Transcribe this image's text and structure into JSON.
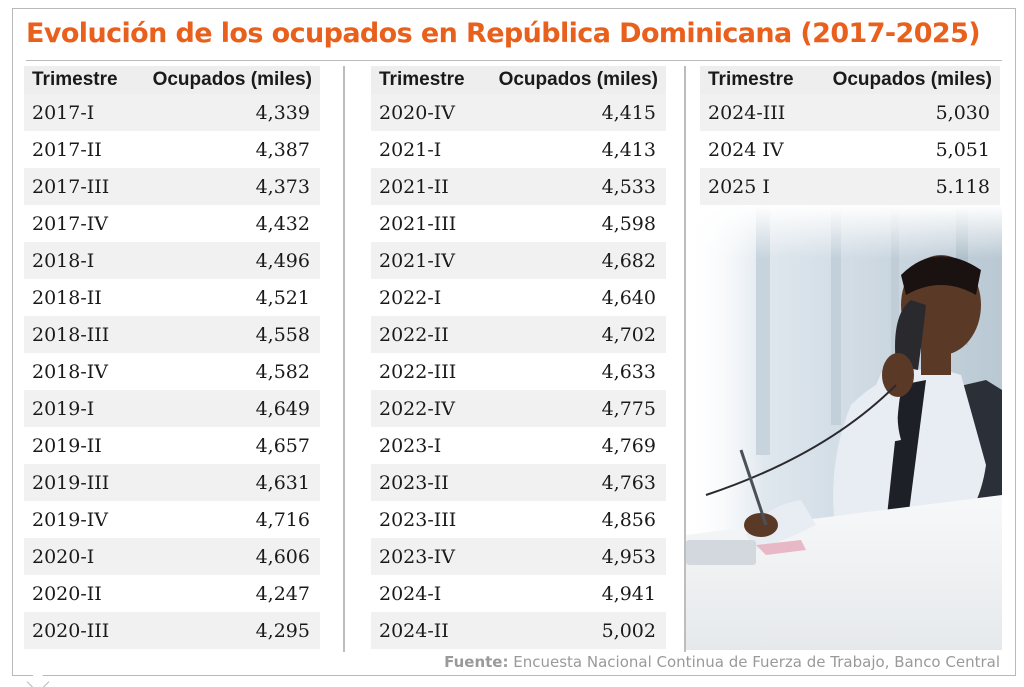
{
  "title": "Evolución de los ocupados en República Dominicana (2017-2025)",
  "header": {
    "col_quarter": "Trimestre",
    "col_value": "Ocupados (miles)"
  },
  "columns": [
    [
      {
        "q": "2017-I",
        "v": "4,339"
      },
      {
        "q": "2017-II",
        "v": "4,387"
      },
      {
        "q": "2017-III",
        "v": "4,373"
      },
      {
        "q": "2017-IV",
        "v": "4,432"
      },
      {
        "q": "2018-I",
        "v": "4,496"
      },
      {
        "q": "2018-II",
        "v": "4,521"
      },
      {
        "q": "2018-III",
        "v": "4,558"
      },
      {
        "q": "2018-IV",
        "v": "4,582"
      },
      {
        "q": "2019-I",
        "v": "4,649"
      },
      {
        "q": "2019-II",
        "v": "4,657"
      },
      {
        "q": "2019-III",
        "v": "4,631"
      },
      {
        "q": "2019-IV",
        "v": "4,716"
      },
      {
        "q": "2020-I",
        "v": "4,606"
      },
      {
        "q": "2020-II",
        "v": "4,247"
      },
      {
        "q": "2020-III",
        "v": "4,295"
      }
    ],
    [
      {
        "q": "2020-IV",
        "v": "4,415"
      },
      {
        "q": "2021-I",
        "v": "4,413"
      },
      {
        "q": "2021-II",
        "v": "4,533"
      },
      {
        "q": "2021-III",
        "v": "4,598"
      },
      {
        "q": "2021-IV",
        "v": "4,682"
      },
      {
        "q": "2022-I",
        "v": "4,640"
      },
      {
        "q": "2022-II",
        "v": "4,702"
      },
      {
        "q": "2022-III",
        "v": "4,633"
      },
      {
        "q": "2022-IV",
        "v": "4,775"
      },
      {
        "q": "2023-I",
        "v": "4,769"
      },
      {
        "q": "2023-II",
        "v": "4,763"
      },
      {
        "q": "2023-III",
        "v": "4,856"
      },
      {
        "q": "2023-IV",
        "v": "4,953"
      },
      {
        "q": "2024-I",
        "v": "4,941"
      },
      {
        "q": "2024-II",
        "v": "5,002"
      }
    ],
    [
      {
        "q": "2024-III",
        "v": "5,030"
      },
      {
        "q": "2024 IV",
        "v": "5,051"
      },
      {
        "q": "2025 I",
        "v": "5.118"
      }
    ]
  ],
  "source": {
    "label": "Fuente:",
    "text": "Encuesta Nacional Continua de Fuerza de Trabajo, Banco Central"
  },
  "photo": {
    "icon": "man-on-phone-photo"
  },
  "colors": {
    "title": "#e8601c",
    "header_bg": "#eeeeee",
    "row_alt_bg": "#f1f1f1",
    "source": "#9a9a9a"
  },
  "chart_data": {
    "type": "table",
    "title": "Evolución de los ocupados en República Dominicana (2017-2025)",
    "columns": [
      "Trimestre",
      "Ocupados (miles)"
    ],
    "rows": [
      [
        "2017-I",
        4339
      ],
      [
        "2017-II",
        4387
      ],
      [
        "2017-III",
        4373
      ],
      [
        "2017-IV",
        4432
      ],
      [
        "2018-I",
        4496
      ],
      [
        "2018-II",
        4521
      ],
      [
        "2018-III",
        4558
      ],
      [
        "2018-IV",
        4582
      ],
      [
        "2019-I",
        4649
      ],
      [
        "2019-II",
        4657
      ],
      [
        "2019-III",
        4631
      ],
      [
        "2019-IV",
        4716
      ],
      [
        "2020-I",
        4606
      ],
      [
        "2020-II",
        4247
      ],
      [
        "2020-III",
        4295
      ],
      [
        "2020-IV",
        4415
      ],
      [
        "2021-I",
        4413
      ],
      [
        "2021-II",
        4533
      ],
      [
        "2021-III",
        4598
      ],
      [
        "2021-IV",
        4682
      ],
      [
        "2022-I",
        4640
      ],
      [
        "2022-II",
        4702
      ],
      [
        "2022-III",
        4633
      ],
      [
        "2022-IV",
        4775
      ],
      [
        "2023-I",
        4769
      ],
      [
        "2023-II",
        4763
      ],
      [
        "2023-III",
        4856
      ],
      [
        "2023-IV",
        4953
      ],
      [
        "2024-I",
        4941
      ],
      [
        "2024-II",
        5002
      ],
      [
        "2024-III",
        5030
      ],
      [
        "2024 IV",
        5051
      ],
      [
        "2025 I",
        5118
      ]
    ]
  }
}
